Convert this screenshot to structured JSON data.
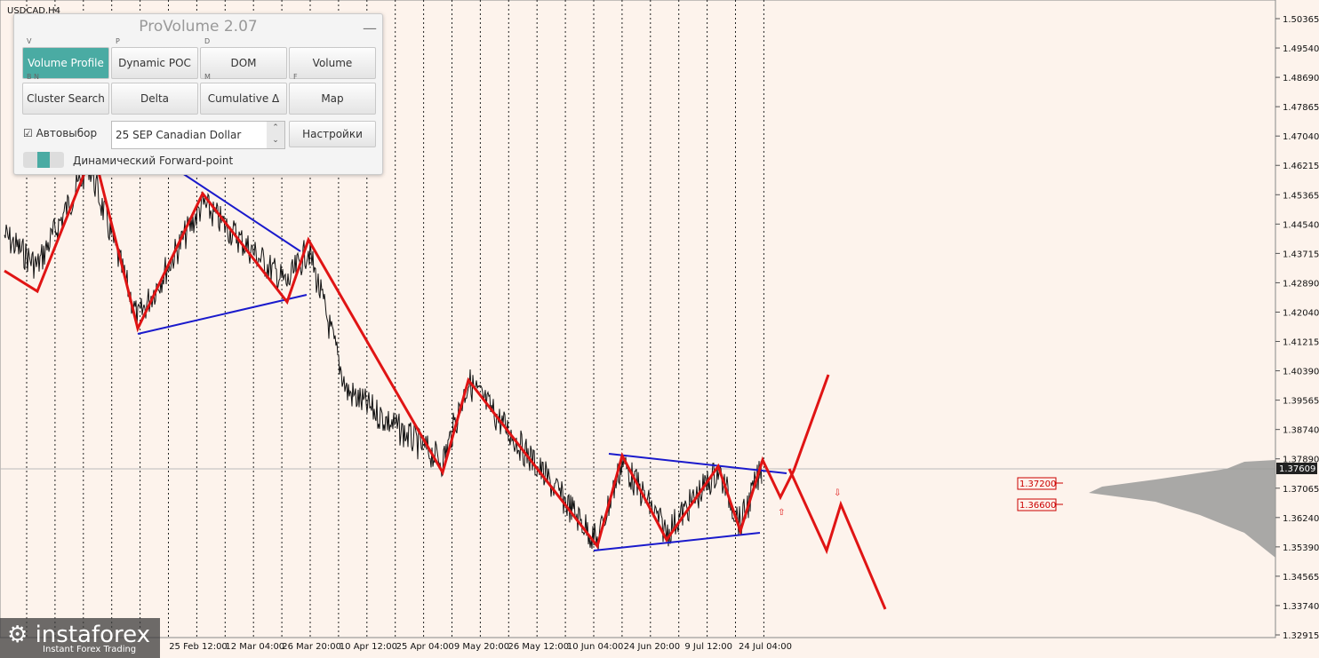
{
  "symbol": "USDCAD,H4",
  "price_axis": {
    "labels": [
      "1.50365",
      "1.49540",
      "1.48690",
      "1.47865",
      "1.47040",
      "1.46215",
      "1.45365",
      "1.44540",
      "1.43715",
      "1.42890",
      "1.42040",
      "1.41215",
      "1.40390",
      "1.39565",
      "1.38740",
      "1.37890",
      "1.37065",
      "1.36240",
      "1.35390",
      "1.34565",
      "1.33740",
      "1.32915"
    ],
    "current": "1.37609"
  },
  "time_axis": {
    "labels": [
      "25 Feb 12:00",
      "12 Mar 04:00",
      "26 Mar 20:00",
      "10 Apr 12:00",
      "25 Apr 04:00",
      "9 May 20:00",
      "26 May 12:00",
      "10 Jun 04:00",
      "24 Jun 20:00",
      "9 Jul 12:00",
      "24 Jul 04:00"
    ]
  },
  "price_tags": [
    "1.37200",
    "1.36600"
  ],
  "panel": {
    "title": "ProVolume 2.07",
    "buttons": [
      {
        "key": "V",
        "label": "Volume Profile"
      },
      {
        "key": "P",
        "label": "Dynamic POC"
      },
      {
        "key": "D",
        "label": "DOM"
      },
      {
        "label": "Volume"
      },
      {
        "key": "B N",
        "label": "Cluster Search"
      },
      {
        "label": "Delta"
      },
      {
        "key": "M",
        "label": "Cumulative Δ"
      },
      {
        "key": "F",
        "label": "Map"
      }
    ],
    "auto_select": "Автовыбор",
    "instrument": "25 SEP Canadian Dollar",
    "settings": "Настройки",
    "forward_point": "Динамический Forward-point"
  },
  "watermark": {
    "brand": "instaforex",
    "tagline": "Instant Forex Trading"
  }
}
